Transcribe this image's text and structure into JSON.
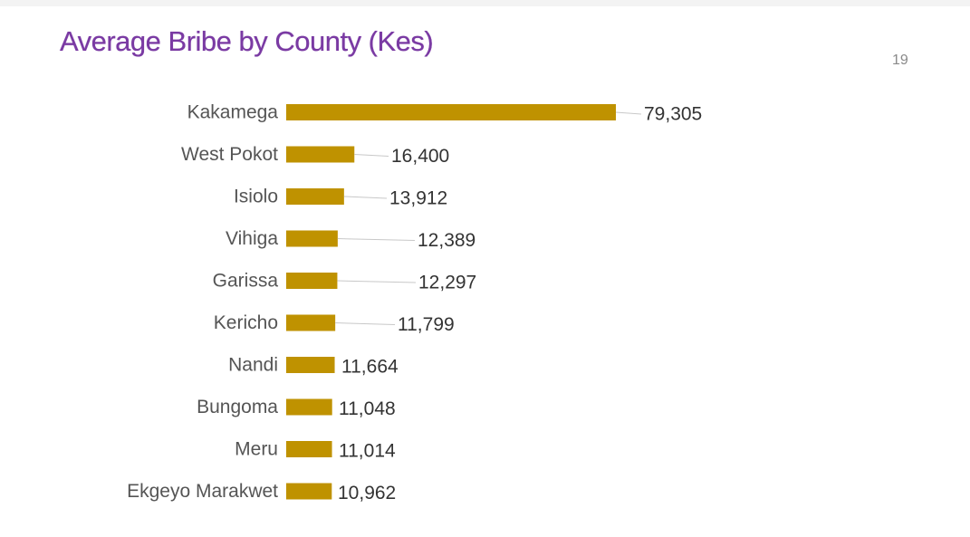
{
  "slide": {
    "title": "Average Bribe by County (Kes)",
    "page_number": "19"
  },
  "colors": {
    "bar": "#bf9200",
    "leader_line": "#c8c8c8",
    "title": "#7a3aa3"
  },
  "chart_data": {
    "type": "bar",
    "orientation": "horizontal",
    "title": "Average Bribe by County (Kes)",
    "categories": [
      "Kakamega",
      "West Pokot",
      "Isiolo",
      "Vihiga",
      "Garissa",
      "Kericho",
      "Nandi",
      "Bungoma",
      "Meru",
      "Ekgeyo Marakwet"
    ],
    "values": [
      79305,
      16400,
      13912,
      12389,
      12297,
      11799,
      11664,
      11048,
      11014,
      10962
    ],
    "value_labels": [
      "79,305",
      "16,400",
      "13,912",
      "12,389",
      "12,297",
      "11,799",
      "11,664",
      "11,048",
      "11,014",
      "10,962"
    ],
    "xlabel": "",
    "ylabel": "",
    "xlim": [
      0,
      79305
    ],
    "grid": false,
    "legend": "none"
  }
}
